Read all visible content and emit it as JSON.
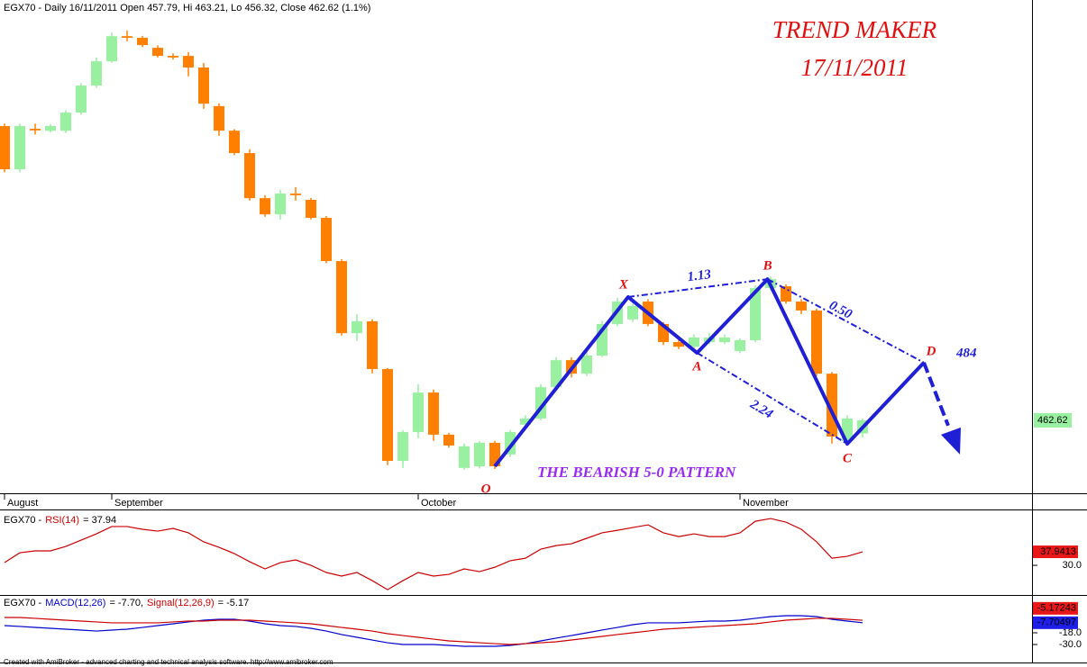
{
  "chart_data": [
    {
      "type": "candlestick",
      "header": "EGX70 - Daily 16/11/2011 Open 457.79, Hi 463.21, Lo 456.32, Close 462.62 (1.1%)",
      "title": "TREND MAKER",
      "subtitle": "17/11/2011",
      "annotation": "THE BEARISH 5-0 PATTERN",
      "categories": [
        "August",
        null,
        null,
        null,
        null,
        null,
        null,
        "September",
        null,
        null,
        null,
        null,
        null,
        null,
        null,
        null,
        null,
        null,
        null,
        null,
        null,
        null,
        null,
        null,
        null,
        null,
        null,
        "October",
        null,
        null,
        null,
        null,
        null,
        null,
        null,
        null,
        null,
        null,
        null,
        null,
        null,
        null,
        null,
        null,
        null,
        null,
        null,
        null,
        "November",
        null,
        null,
        null,
        null,
        null,
        null,
        null,
        null
      ],
      "candles": {
        "open": [
          571.6,
          555.6,
          570.6,
          569.9,
          569.9,
          576.6,
          586.6,
          595.6,
          604.9,
          604.3,
          600.6,
          597.6,
          597.6,
          593.3,
          579.0,
          569.9,
          561.6,
          544.9,
          538.9,
          546.6,
          544.3,
          537.6,
          521.6,
          494.9,
          499.3,
          481.6,
          447.6,
          458.3,
          472.9,
          457.3,
          445.0,
          445.6,
          454.3,
          450.0,
          461.0,
          463.3,
          474.9,
          484.9,
          479.9,
          486.6,
          498.3,
          500.0,
          506.6,
          498.3,
          491.6,
          489.9,
          491.6,
          491.6,
          488.3,
          492.3,
          511.6,
          512.3,
          506.6,
          503.3,
          479.9,
          454.9,
          457.79
        ],
        "high": [
          572.5,
          572.5,
          572.5,
          572.3,
          577.5,
          587.5,
          597.0,
          606.3,
          607.0,
          605.0,
          601.5,
          598.5,
          599.0,
          595.0,
          580.0,
          570.5,
          563.0,
          546.0,
          548.0,
          549.0,
          545.0,
          538.3,
          522.3,
          502.0,
          500.0,
          482.0,
          459.0,
          476.0,
          474.0,
          458.0,
          454.0,
          455.0,
          455.0,
          459.0,
          464.5,
          476.0,
          486.0,
          486.0,
          489.0,
          499.5,
          508.0,
          506.0,
          507.5,
          499.0,
          492.5,
          494.5,
          495.0,
          494.5,
          493.0,
          512.5,
          516.0,
          513.0,
          507.5,
          504.0,
          480.5,
          464.5,
          463.21
        ],
        "low": [
          554.5,
          554.5,
          568.5,
          569.2,
          569.0,
          575.8,
          585.8,
          595.0,
          603.0,
          600.8,
          597.0,
          596.2,
          590.0,
          578.0,
          568.0,
          560.8,
          544.0,
          538.0,
          537.0,
          544.0,
          537.0,
          520.8,
          494.0,
          492.0,
          480.0,
          446.0,
          445.0,
          456.0,
          455.0,
          452.5,
          444.3,
          444.8,
          444.6,
          449.0,
          460.0,
          462.5,
          474.0,
          478.5,
          479.0,
          486.0,
          497.5,
          499.0,
          497.5,
          490.5,
          489.0,
          489.0,
          490.8,
          490.8,
          487.5,
          491.5,
          510.8,
          505.8,
          502.0,
          479.0,
          454.0,
          453.5,
          456.32
        ],
        "close": [
          555.6,
          571.6,
          570.0,
          571.6,
          576.6,
          586.6,
          595.6,
          604.9,
          604.3,
          601.6,
          597.6,
          597.0,
          593.3,
          579.9,
          569.9,
          561.6,
          544.9,
          538.9,
          546.6,
          546.0,
          537.6,
          521.6,
          494.9,
          499.3,
          481.6,
          447.6,
          458.3,
          472.9,
          457.3,
          453.3,
          453.0,
          454.3,
          445.6,
          458.3,
          463.3,
          474.9,
          484.9,
          479.9,
          486.6,
          498.3,
          506.6,
          505.0,
          498.3,
          491.6,
          489.9,
          493.3,
          493.3,
          493.3,
          492.3,
          511.6,
          514.9,
          506.6,
          503.3,
          479.9,
          456.6,
          463.3,
          462.62
        ]
      },
      "up_color": "#98f0a0",
      "down_color": "#ff8000",
      "last_price": 462.62,
      "last_price_color": "#98f0a0",
      "ylim": [
        435.6,
        618.3
      ],
      "pattern": {
        "color": "#1f1fd6",
        "points": [
          {
            "label": "O",
            "x": 32,
            "y": 445.6
          },
          {
            "label": "X",
            "x": 40.7,
            "y": 508.3
          },
          {
            "label": "A",
            "x": 45.2,
            "y": 487.6
          },
          {
            "label": "B",
            "x": 49.8,
            "y": 514.9
          },
          {
            "label": "C",
            "x": 55,
            "y": 453.9
          },
          {
            "label": "D",
            "x": 60,
            "y": 484
          }
        ],
        "legs": [
          {
            "from": "X",
            "to": "B",
            "label": "1.13"
          },
          {
            "from": "B",
            "to": "D",
            "label": "0.50"
          },
          {
            "from": "A",
            "to": "C",
            "label": "2.24"
          }
        ]
      }
    },
    {
      "type": "line",
      "ticker": "EGX70 -",
      "indicator": "RSI(14)",
      "readout": "= 37.94",
      "series": [
        {
          "name": "RSI(14)",
          "color": "#cc0000",
          "values": [
            31.6,
            37.4,
            38.5,
            38.5,
            41.1,
            44.8,
            48.5,
            52.8,
            52.8,
            51.2,
            50.1,
            51.7,
            49.1,
            43.8,
            40.6,
            36.9,
            32.1,
            27.9,
            31.6,
            33.2,
            30.0,
            25.8,
            23.7,
            25.8,
            21.0,
            15.7,
            21.0,
            25.8,
            23.7,
            24.7,
            27.9,
            26.3,
            28.9,
            32.7,
            34.2,
            39.5,
            41.6,
            42.7,
            45.9,
            49.1,
            50.6,
            52.2,
            53.8,
            49.1,
            46.9,
            48.5,
            46.9,
            46.9,
            49.1,
            55.9,
            57.5,
            55.4,
            51.2,
            43.8,
            34.2,
            35.3,
            37.9413
          ],
          "last_label": "37.9413"
        }
      ],
      "ylim": [
        13.1,
        62.3
      ],
      "yticks": [
        {
          "value": 30,
          "label": "30.0"
        }
      ]
    },
    {
      "type": "line",
      "ticker": "EGX70 -",
      "series": [
        {
          "name": "MACD(12,26)",
          "readout": "= -7.70,",
          "color": "#0000cc",
          "last_label": "-7.70497",
          "values": [
            -10.6,
            -11.5,
            -12.5,
            -13.4,
            -14.3,
            -15.2,
            -16.2,
            -15.2,
            -14.3,
            -12.5,
            -10.6,
            -8.8,
            -6.9,
            -5.1,
            -4.2,
            -4.2,
            -6.0,
            -8.8,
            -10.6,
            -11.5,
            -13.4,
            -16.2,
            -19.8,
            -22.6,
            -25.4,
            -28.2,
            -30.0,
            -30.0,
            -30.0,
            -30.9,
            -31.8,
            -31.8,
            -31.8,
            -30.9,
            -29.1,
            -26.3,
            -23.5,
            -20.8,
            -18.0,
            -15.2,
            -12.5,
            -9.7,
            -7.8,
            -7.8,
            -7.8,
            -6.9,
            -6.0,
            -6.0,
            -5.1,
            -3.2,
            -1.4,
            -0.5,
            -0.5,
            -1.4,
            -4.2,
            -6.0,
            -7.70497
          ]
        },
        {
          "name": "Signal(12,26,9)",
          "readout": "= -5.17",
          "color": "#cc0000",
          "last_label": "-5.17243",
          "values": [
            -2.3,
            -2.3,
            -3.2,
            -4.2,
            -5.1,
            -6.0,
            -6.9,
            -7.8,
            -7.8,
            -7.8,
            -7.8,
            -6.9,
            -6.0,
            -6.0,
            -5.1,
            -5.1,
            -5.1,
            -6.0,
            -6.9,
            -7.8,
            -8.8,
            -10.6,
            -12.5,
            -14.3,
            -16.2,
            -18.9,
            -20.8,
            -22.6,
            -24.5,
            -26.3,
            -27.2,
            -28.2,
            -29.1,
            -30.0,
            -29.1,
            -28.2,
            -27.2,
            -25.4,
            -23.5,
            -21.7,
            -19.8,
            -18.0,
            -16.2,
            -14.3,
            -13.4,
            -12.5,
            -11.5,
            -10.6,
            -9.7,
            -8.8,
            -6.9,
            -5.1,
            -4.2,
            -3.2,
            -3.2,
            -4.2,
            -5.17243
          ]
        }
      ],
      "ylim": [
        -47.5,
        19.8
      ],
      "yticks": [
        {
          "value": -18,
          "label": "-18.0"
        },
        {
          "value": -30,
          "label": "-30.0"
        }
      ]
    }
  ],
  "footer": "Created with AmiBroker - advanced charting and technical analysis software. http://www.amibroker.com"
}
